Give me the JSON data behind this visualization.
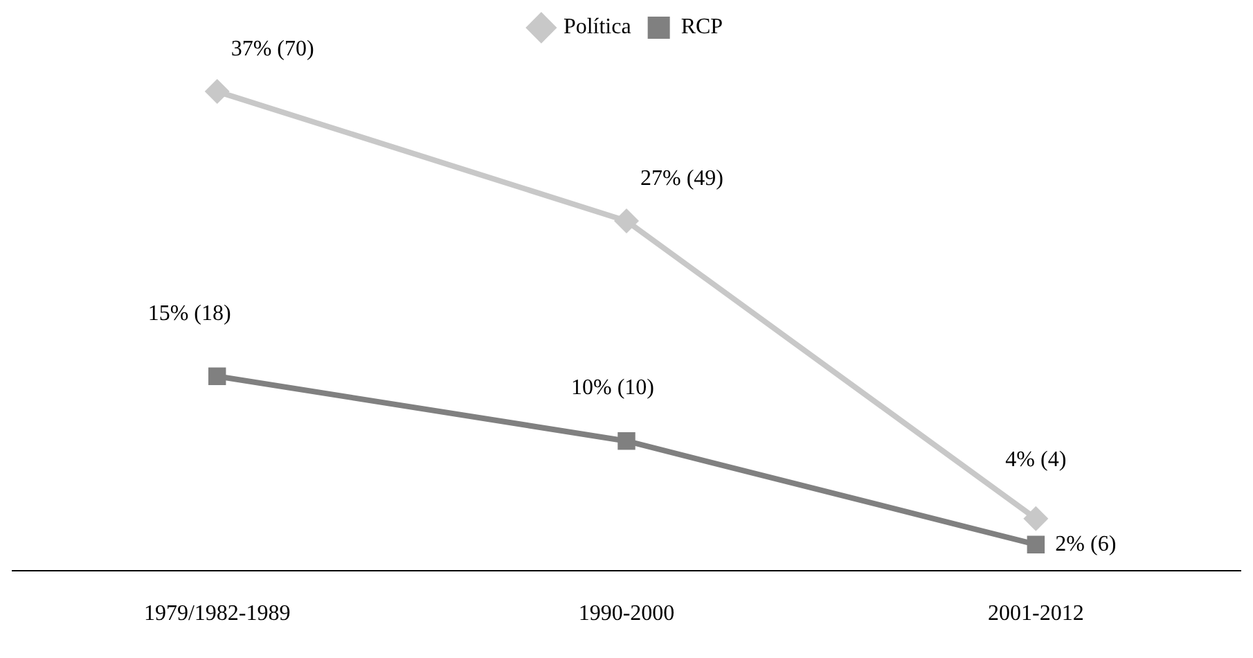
{
  "chart_data": {
    "type": "line",
    "categories": [
      "1979/1982-1989",
      "1990-2000",
      "2001-2012"
    ],
    "tick_labels": "x",
    "series": [
      {
        "name": "Política",
        "color": "#c8c8c8",
        "marker": "diamond",
        "values": [
          37,
          27,
          4
        ],
        "value_labels": [
          "37% (70)",
          "27% (49)",
          "4% (4)"
        ]
      },
      {
        "name": "RCP",
        "color": "#808080",
        "marker": "square",
        "values": [
          15,
          10,
          2
        ],
        "value_labels": [
          "15% (18)",
          "10% (10)",
          "2% (6)"
        ]
      }
    ],
    "legend": "top",
    "grid": false,
    "line_style": "solid"
  }
}
